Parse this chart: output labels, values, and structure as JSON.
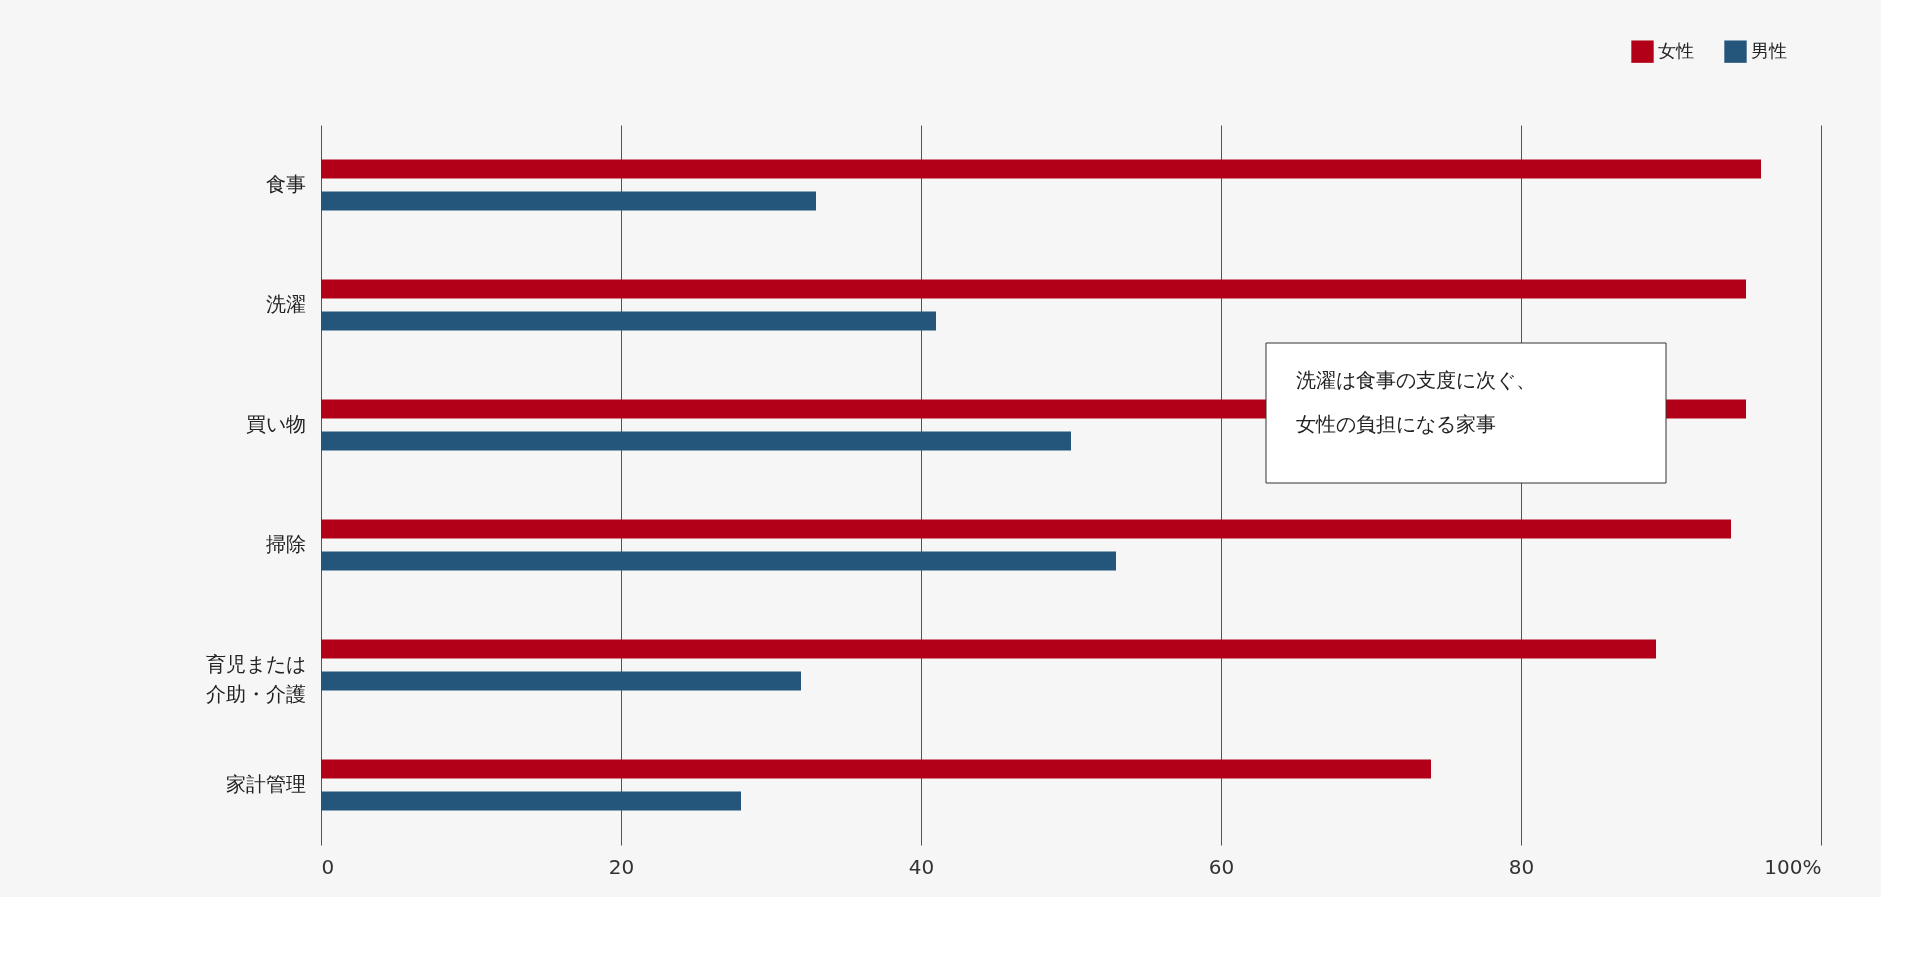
{
  "chart_data": {
    "type": "bar",
    "orientation": "horizontal",
    "categories": [
      "食事",
      "洗濯",
      "買い物",
      "掃除",
      "育児または介助・介護",
      "家計管理"
    ],
    "series": [
      {
        "name": "女性",
        "color": "#b10018",
        "values": [
          96,
          95,
          95,
          94,
          89,
          74
        ]
      },
      {
        "name": "男性",
        "color": "#23567a",
        "values": [
          33,
          41,
          50,
          53,
          32,
          28
        ]
      }
    ],
    "xlim": [
      0,
      100
    ],
    "xticks": [
      0,
      20,
      40,
      60,
      80,
      {
        "value": 100,
        "label": "100%"
      }
    ],
    "grid": "x",
    "legend": "top right",
    "annotations": [
      "洗濯は食事の支度に次ぐ、女性の負担になる家事"
    ]
  }
}
